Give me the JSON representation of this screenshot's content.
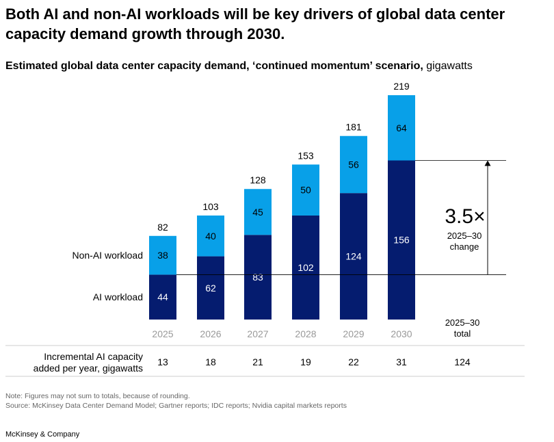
{
  "title": "Both AI and non-AI workloads will be key drivers of global data center capacity demand growth through 2030.",
  "subtitle_bold": "Estimated global data center capacity demand, ‘continued momentum’ scenario,",
  "subtitle_unit": "gigawatts",
  "colors": {
    "ai": "#051c6f",
    "non_ai": "#08a0e8",
    "text_dark": "#000000",
    "tick": "#999999"
  },
  "chart_data": {
    "type": "bar",
    "stacked": true,
    "categories": [
      "2025",
      "2026",
      "2027",
      "2028",
      "2029",
      "2030"
    ],
    "series": [
      {
        "name": "AI workload",
        "values": [
          44,
          62,
          83,
          102,
          124,
          156
        ]
      },
      {
        "name": "Non-AI workload",
        "values": [
          38,
          40,
          45,
          50,
          56,
          64
        ]
      }
    ],
    "totals": [
      82,
      103,
      128,
      153,
      181,
      219
    ],
    "annotation": {
      "value": "3.5×",
      "label_line1": "2025–30",
      "label_line2": "change"
    },
    "total_column": {
      "label_line1": "2025–30",
      "label_line2": "total"
    },
    "incremental": {
      "label_line1": "Incremental AI capacity",
      "label_line2": "added per year, gigawatts",
      "values": [
        "13",
        "18",
        "21",
        "19",
        "22",
        "31"
      ],
      "total": "124"
    }
  },
  "notes": {
    "note": "Note: Figures may not sum to totals, because of rounding.",
    "source": "Source: McKinsey Data Center Demand Model; Gartner reports; IDC reports; Nvidia capital markets reports"
  },
  "brand": "McKinsey & Company"
}
